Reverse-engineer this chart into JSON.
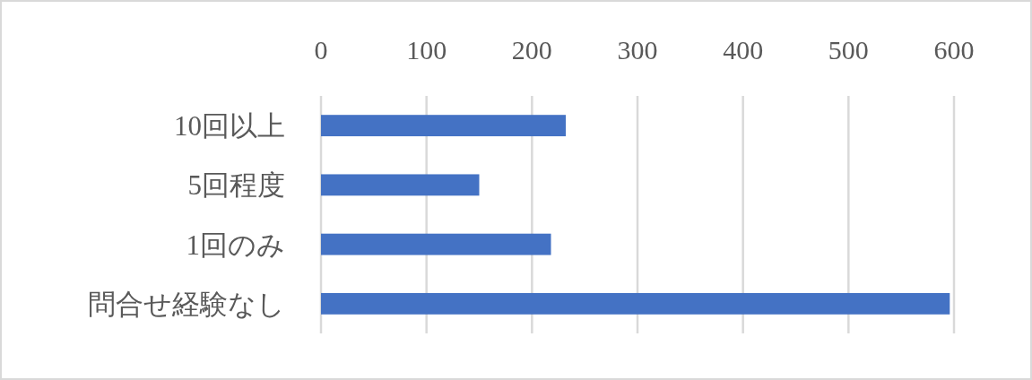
{
  "chart_data": {
    "type": "bar",
    "orientation": "horizontal",
    "categories": [
      "10回以上",
      "5回程度",
      "1回のみ",
      "問合せ経験なし"
    ],
    "values": [
      232,
      150,
      218,
      596
    ],
    "color": "#4472c4",
    "xlim": [
      0,
      600
    ],
    "xticks": [
      0,
      100,
      200,
      300,
      400,
      500,
      600
    ],
    "grid": "x"
  }
}
